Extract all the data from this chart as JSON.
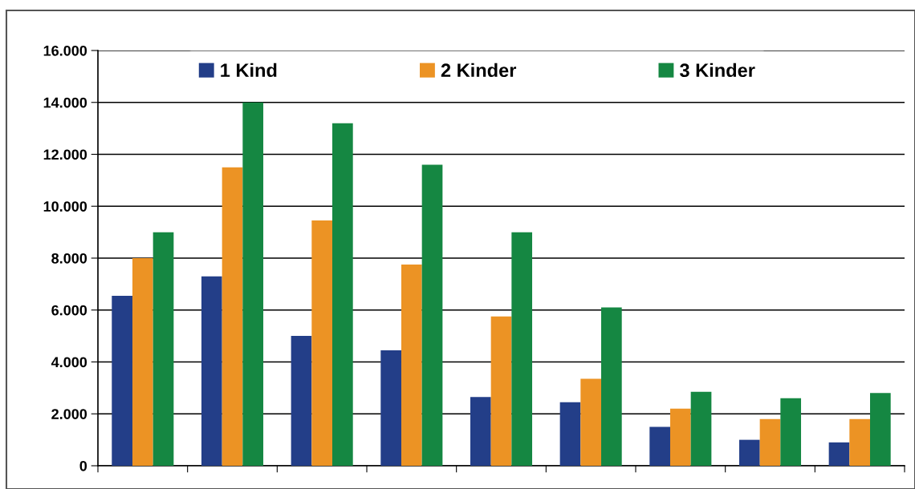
{
  "chart_data": {
    "type": "bar",
    "categories": [
      null,
      null,
      null,
      null,
      null,
      null,
      null,
      null,
      null
    ],
    "series": [
      {
        "name": "1 Kind",
        "color": "#233e88",
        "values": [
          6550,
          7300,
          5000,
          4450,
          2650,
          2450,
          1500,
          1000,
          900
        ]
      },
      {
        "name": "2 Kinder",
        "color": "#ec9324",
        "values": [
          8000,
          11500,
          9450,
          7750,
          5750,
          3350,
          2200,
          1800,
          1800
        ]
      },
      {
        "name": "3 Kinder",
        "color": "#158742",
        "values": [
          9000,
          14000,
          13200,
          11600,
          9000,
          6100,
          2850,
          2600,
          2800
        ]
      }
    ],
    "ylim": [
      0,
      16000
    ],
    "yticks": [
      {
        "value": 0,
        "label": "0"
      },
      {
        "value": 2000,
        "label": "2.000"
      },
      {
        "value": 4000,
        "label": "4.000"
      },
      {
        "value": 6000,
        "label": "6.000"
      },
      {
        "value": 8000,
        "label": "8.000"
      },
      {
        "value": 10000,
        "label": "10.000"
      },
      {
        "value": 12000,
        "label": "12.000"
      },
      {
        "value": 14000,
        "label": "14.000"
      },
      {
        "value": 16000,
        "label": "16.000"
      }
    ],
    "grid": "y",
    "legend": "top"
  }
}
